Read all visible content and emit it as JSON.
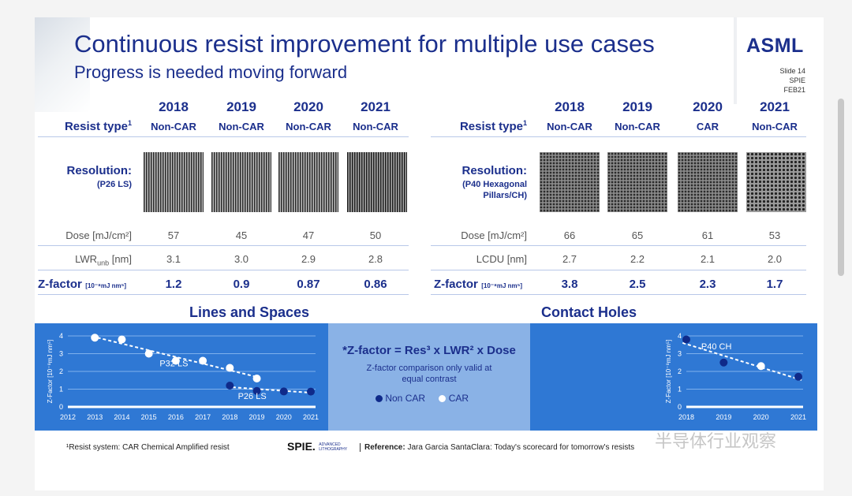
{
  "header": {
    "title": "Continuous resist improvement for multiple use cases",
    "subtitle": "Progress is needed moving forward",
    "logo": "ASML",
    "slide_no": "Slide 14",
    "event": "SPIE FEB21"
  },
  "left_table": {
    "years": [
      "2018",
      "2019",
      "2020",
      "2021"
    ],
    "resist_label": "Resist type",
    "resist_sup": "1",
    "resist": [
      "Non-CAR",
      "Non-CAR",
      "Non-CAR",
      "Non-CAR"
    ],
    "resolution_label": "Resolution:",
    "resolution_sub": "(P26 LS)",
    "dose_label": "Dose [mJ/cm²]",
    "dose": [
      "57",
      "45",
      "47",
      "50"
    ],
    "lwr_label": "LWR",
    "lwr_sub": "unb",
    "lwr_unit": " [nm]",
    "lwr": [
      "3.1",
      "3.0",
      "2.9",
      "2.8"
    ],
    "z_label": "Z-factor",
    "z_unit": "[10⁻⁸mJ nm⁵]",
    "z": [
      "1.2",
      "0.9",
      "0.87",
      "0.86"
    ]
  },
  "right_table": {
    "years": [
      "2018",
      "2019",
      "2020",
      "2021"
    ],
    "resist_label": "Resist type",
    "resist_sup": "1",
    "resist": [
      "Non-CAR",
      "Non-CAR",
      "CAR",
      "Non-CAR"
    ],
    "resolution_label": "Resolution:",
    "resolution_sub": [
      "(P40 Hexagonal",
      "Pillars/CH)"
    ],
    "dose_label": "Dose [mJ/cm²]",
    "dose": [
      "66",
      "65",
      "61",
      "53"
    ],
    "lcdu_label": "LCDU [nm]",
    "lcdu": [
      "2.7",
      "2.2",
      "2.1",
      "2.0"
    ],
    "z_label": "Z-factor",
    "z_unit": "[10⁻⁸mJ nm⁵]",
    "z": [
      "3.8",
      "2.5",
      "2.3",
      "1.7"
    ]
  },
  "section_titles": {
    "left": "Lines and Spaces",
    "right": "Contact Holes"
  },
  "formula": {
    "text": "*Z-factor = Res³ x LWR² x Dose",
    "note": [
      "Z-factor comparison only valid at",
      "equal contrast"
    ],
    "legend_noncar": "Non CAR",
    "legend_car": "CAR"
  },
  "colors": {
    "brand": "#1b2f8c",
    "band": "#2f78d4",
    "band_mid": "#8ab2e6",
    "car": "#ffffff",
    "noncar": "#0f2a8a"
  },
  "chart_data": [
    {
      "type": "scatter",
      "ylabel": "Z-Factor [10⁻⁸mJ nm⁵]",
      "x_ticks": [
        "2012",
        "2013",
        "2014",
        "2015",
        "2016",
        "2017",
        "2018",
        "2019",
        "2020",
        "2021"
      ],
      "y_ticks": [
        "0",
        "1",
        "2",
        "3",
        "4"
      ],
      "xlim": [
        2012,
        2021
      ],
      "ylim": [
        0,
        4
      ],
      "annotations": [
        "P32 LS",
        "P26 LS"
      ],
      "series": [
        {
          "name": "CAR",
          "x": [
            2013,
            2014,
            2015,
            2016,
            2017,
            2018,
            2019
          ],
          "y": [
            3.9,
            3.8,
            3.0,
            2.6,
            2.6,
            2.2,
            1.6
          ]
        },
        {
          "name": "Non CAR",
          "x": [
            2018,
            2019,
            2020,
            2021
          ],
          "y": [
            1.2,
            0.9,
            0.87,
            0.86
          ]
        }
      ]
    },
    {
      "type": "scatter",
      "ylabel": "Z-Factor [10⁻⁸mJ nm⁵]",
      "x_ticks": [
        "2018",
        "2019",
        "2020",
        "2021"
      ],
      "y_ticks": [
        "0",
        "1",
        "2",
        "3",
        "4"
      ],
      "xlim": [
        2018,
        2021
      ],
      "ylim": [
        0,
        4
      ],
      "annotations": [
        "P40 CH"
      ],
      "series": [
        {
          "name": "CAR",
          "x": [
            2020
          ],
          "y": [
            2.3
          ]
        },
        {
          "name": "Non CAR",
          "x": [
            2018,
            2019,
            2021
          ],
          "y": [
            3.8,
            2.5,
            1.7
          ]
        }
      ]
    }
  ],
  "footer": {
    "footnote": "¹Resist system: CAR Chemical Amplified resist",
    "spie": "SPIE.",
    "spie_small": [
      "ADVANCED",
      "LITHOGRAPHY"
    ],
    "reference_label": "Reference:",
    "reference": " Jara Garcia SantaClara: Today's scorecard for tomorrow's resists",
    "watermark": "半导体行业观察"
  }
}
